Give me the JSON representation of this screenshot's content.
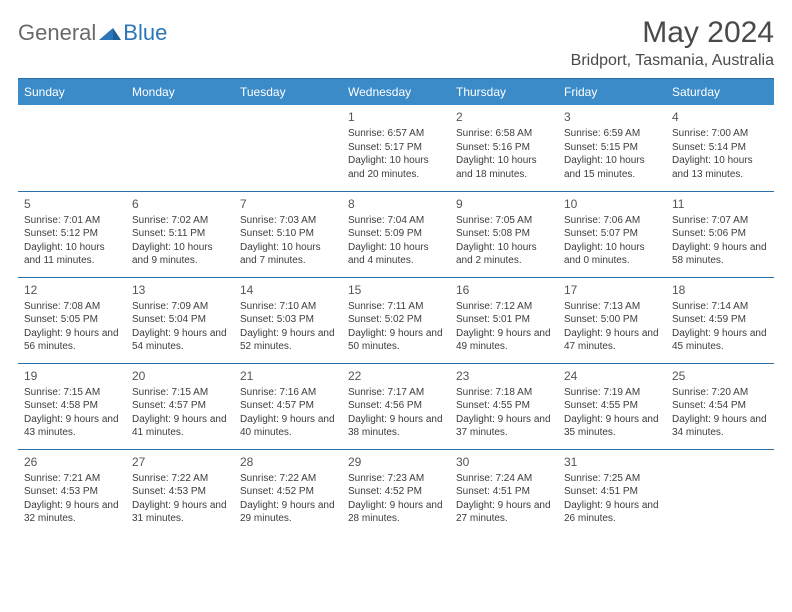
{
  "logo": {
    "general": "General",
    "blue": "Blue"
  },
  "title": "May 2024",
  "location": "Bridport, Tasmania, Australia",
  "colors": {
    "header_bg": "#3b8bc9",
    "header_text": "#ffffff",
    "cell_border": "#2a6fa8",
    "text": "#333333",
    "logo_gray": "#6a6a6a",
    "logo_blue": "#2a76b8"
  },
  "dayHeaders": [
    "Sunday",
    "Monday",
    "Tuesday",
    "Wednesday",
    "Thursday",
    "Friday",
    "Saturday"
  ],
  "weeks": [
    [
      null,
      null,
      null,
      {
        "n": "1",
        "sunrise": "6:57 AM",
        "sunset": "5:17 PM",
        "daylight": "10 hours and 20 minutes."
      },
      {
        "n": "2",
        "sunrise": "6:58 AM",
        "sunset": "5:16 PM",
        "daylight": "10 hours and 18 minutes."
      },
      {
        "n": "3",
        "sunrise": "6:59 AM",
        "sunset": "5:15 PM",
        "daylight": "10 hours and 15 minutes."
      },
      {
        "n": "4",
        "sunrise": "7:00 AM",
        "sunset": "5:14 PM",
        "daylight": "10 hours and 13 minutes."
      }
    ],
    [
      {
        "n": "5",
        "sunrise": "7:01 AM",
        "sunset": "5:12 PM",
        "daylight": "10 hours and 11 minutes."
      },
      {
        "n": "6",
        "sunrise": "7:02 AM",
        "sunset": "5:11 PM",
        "daylight": "10 hours and 9 minutes."
      },
      {
        "n": "7",
        "sunrise": "7:03 AM",
        "sunset": "5:10 PM",
        "daylight": "10 hours and 7 minutes."
      },
      {
        "n": "8",
        "sunrise": "7:04 AM",
        "sunset": "5:09 PM",
        "daylight": "10 hours and 4 minutes."
      },
      {
        "n": "9",
        "sunrise": "7:05 AM",
        "sunset": "5:08 PM",
        "daylight": "10 hours and 2 minutes."
      },
      {
        "n": "10",
        "sunrise": "7:06 AM",
        "sunset": "5:07 PM",
        "daylight": "10 hours and 0 minutes."
      },
      {
        "n": "11",
        "sunrise": "7:07 AM",
        "sunset": "5:06 PM",
        "daylight": "9 hours and 58 minutes."
      }
    ],
    [
      {
        "n": "12",
        "sunrise": "7:08 AM",
        "sunset": "5:05 PM",
        "daylight": "9 hours and 56 minutes."
      },
      {
        "n": "13",
        "sunrise": "7:09 AM",
        "sunset": "5:04 PM",
        "daylight": "9 hours and 54 minutes."
      },
      {
        "n": "14",
        "sunrise": "7:10 AM",
        "sunset": "5:03 PM",
        "daylight": "9 hours and 52 minutes."
      },
      {
        "n": "15",
        "sunrise": "7:11 AM",
        "sunset": "5:02 PM",
        "daylight": "9 hours and 50 minutes."
      },
      {
        "n": "16",
        "sunrise": "7:12 AM",
        "sunset": "5:01 PM",
        "daylight": "9 hours and 49 minutes."
      },
      {
        "n": "17",
        "sunrise": "7:13 AM",
        "sunset": "5:00 PM",
        "daylight": "9 hours and 47 minutes."
      },
      {
        "n": "18",
        "sunrise": "7:14 AM",
        "sunset": "4:59 PM",
        "daylight": "9 hours and 45 minutes."
      }
    ],
    [
      {
        "n": "19",
        "sunrise": "7:15 AM",
        "sunset": "4:58 PM",
        "daylight": "9 hours and 43 minutes."
      },
      {
        "n": "20",
        "sunrise": "7:15 AM",
        "sunset": "4:57 PM",
        "daylight": "9 hours and 41 minutes."
      },
      {
        "n": "21",
        "sunrise": "7:16 AM",
        "sunset": "4:57 PM",
        "daylight": "9 hours and 40 minutes."
      },
      {
        "n": "22",
        "sunrise": "7:17 AM",
        "sunset": "4:56 PM",
        "daylight": "9 hours and 38 minutes."
      },
      {
        "n": "23",
        "sunrise": "7:18 AM",
        "sunset": "4:55 PM",
        "daylight": "9 hours and 37 minutes."
      },
      {
        "n": "24",
        "sunrise": "7:19 AM",
        "sunset": "4:55 PM",
        "daylight": "9 hours and 35 minutes."
      },
      {
        "n": "25",
        "sunrise": "7:20 AM",
        "sunset": "4:54 PM",
        "daylight": "9 hours and 34 minutes."
      }
    ],
    [
      {
        "n": "26",
        "sunrise": "7:21 AM",
        "sunset": "4:53 PM",
        "daylight": "9 hours and 32 minutes."
      },
      {
        "n": "27",
        "sunrise": "7:22 AM",
        "sunset": "4:53 PM",
        "daylight": "9 hours and 31 minutes."
      },
      {
        "n": "28",
        "sunrise": "7:22 AM",
        "sunset": "4:52 PM",
        "daylight": "9 hours and 29 minutes."
      },
      {
        "n": "29",
        "sunrise": "7:23 AM",
        "sunset": "4:52 PM",
        "daylight": "9 hours and 28 minutes."
      },
      {
        "n": "30",
        "sunrise": "7:24 AM",
        "sunset": "4:51 PM",
        "daylight": "9 hours and 27 minutes."
      },
      {
        "n": "31",
        "sunrise": "7:25 AM",
        "sunset": "4:51 PM",
        "daylight": "9 hours and 26 minutes."
      },
      null
    ]
  ],
  "labels": {
    "sunrise": "Sunrise:",
    "sunset": "Sunset:",
    "daylight": "Daylight:"
  }
}
